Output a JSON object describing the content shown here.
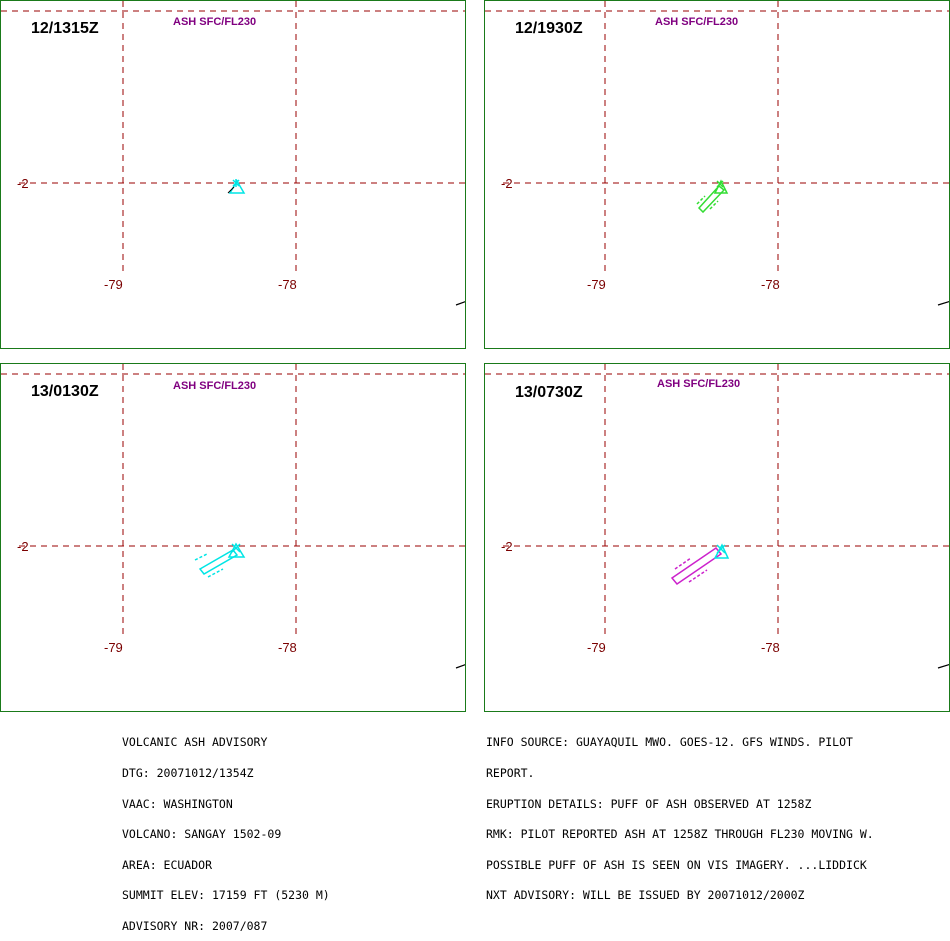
{
  "colors": {
    "frame": "#1a7a1a",
    "grid": "#990000",
    "label": "#7a0000",
    "layer": "#800080",
    "text": "#000000"
  },
  "panels": [
    {
      "time": "12/1315Z",
      "layer": "ASH SFC/FL230",
      "lat_label": "-2",
      "lon_labels": [
        "-79",
        "-78"
      ],
      "ash_color": "#00e5e5",
      "ash_icon": "cyan-ash-marker-icon"
    },
    {
      "time": "12/1930Z",
      "layer": "ASH SFC/FL230",
      "lat_label": "-2",
      "lon_labels": [
        "-79",
        "-78"
      ],
      "ash_color": "#33dd33",
      "ash_icon": "green-ash-plume-icon"
    },
    {
      "time": "13/0130Z",
      "layer": "ASH SFC/FL230",
      "lat_label": "-2",
      "lon_labels": [
        "-79",
        "-78"
      ],
      "ash_color": "#00e5e5",
      "ash_icon": "cyan-ash-plume-icon"
    },
    {
      "time": "13/0730Z",
      "layer": "ASH SFC/FL230",
      "lat_label": "-2",
      "lon_labels": [
        "-79",
        "-78"
      ],
      "ash_color": "#cc22cc",
      "ash_icon": "magenta-ash-plume-icon"
    }
  ],
  "advisory": {
    "lines": [
      "VOLCANIC ASH ADVISORY",
      "DTG: 20071012/1354Z",
      "VAAC: WASHINGTON",
      "VOLCANO: SANGAY 1502-09",
      "AREA: ECUADOR",
      "SUMMIT ELEV: 17159 FT (5230 M)",
      "ADVISORY NR: 2007/087"
    ]
  },
  "info": {
    "lines": [
      "INFO SOURCE: GUAYAQUIL MWO. GOES-12. GFS WINDS. PILOT",
      "REPORT.",
      "ERUPTION DETAILS: PUFF OF ASH OBSERVED AT 1258Z",
      "RMK: PILOT REPORTED ASH AT 1258Z THROUGH FL230 MOVING W.",
      "POSSIBLE PUFF OF ASH IS SEEN ON VIS IMAGERY. ...LIDDICK",
      "NXT ADVISORY: WILL BE ISSUED BY 20071012/2000Z"
    ]
  }
}
